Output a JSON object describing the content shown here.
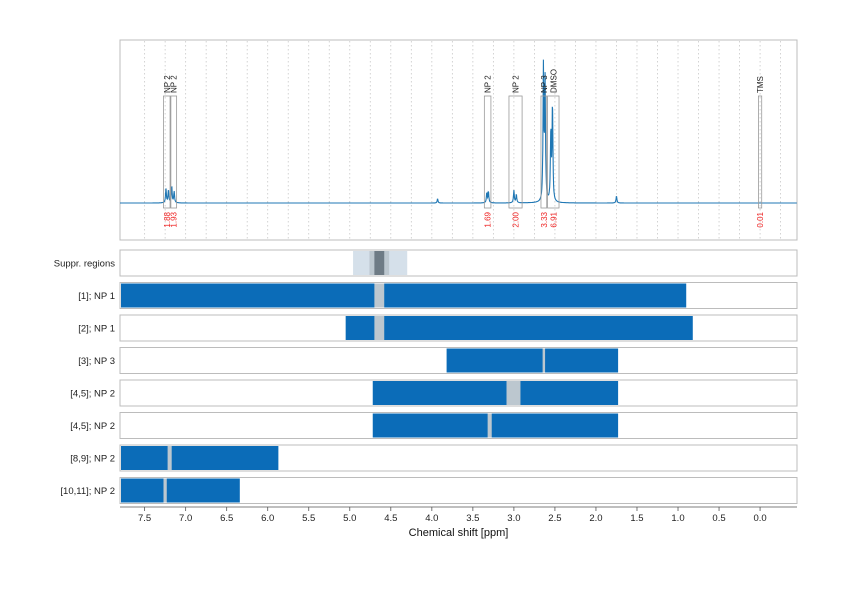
{
  "chart_data": {
    "type": "line",
    "xlabel": "Chemical shift [ppm]",
    "xlim": [
      7.8,
      -0.45
    ],
    "x_reversed": true,
    "x_ticks": [
      7.5,
      7.0,
      6.5,
      6.0,
      5.5,
      5.0,
      4.5,
      4.0,
      3.5,
      3.0,
      2.5,
      2.0,
      1.5,
      1.0,
      0.5,
      0.0
    ],
    "x_tick_labels": [
      "7.5",
      "7.0",
      "6.5",
      "6.0",
      "5.5",
      "5.0",
      "4.5",
      "4.0",
      "3.5",
      "3.0",
      "2.5",
      "2.0",
      "1.5",
      "1.0",
      "0.5",
      "0.0"
    ],
    "grid": "vertical dotted",
    "colors": {
      "spectrum": "#1f77b4",
      "bar": "#0b6cb8",
      "suppression_light": "#d5e0ea",
      "suppression_mid": "#bcc7cf",
      "suppression_dark": "#6e7b85",
      "integral_text": "#ee2222"
    },
    "spectrum": {
      "baseline": 0,
      "peaks": [
        {
          "x": 7.24,
          "height": 0.1
        },
        {
          "x": 7.21,
          "height": 0.09
        },
        {
          "x": 7.17,
          "height": 0.12
        },
        {
          "x": 7.14,
          "height": 0.08
        },
        {
          "x": 3.93,
          "height": 0.03
        },
        {
          "x": 3.33,
          "height": 0.07
        },
        {
          "x": 3.31,
          "height": 0.08
        },
        {
          "x": 3.0,
          "height": 0.09
        },
        {
          "x": 2.97,
          "height": 0.06
        },
        {
          "x": 2.64,
          "height": 0.95
        },
        {
          "x": 2.62,
          "height": 0.85
        },
        {
          "x": 2.55,
          "height": 0.5
        },
        {
          "x": 2.53,
          "height": 0.7
        },
        {
          "x": 1.75,
          "height": 0.05
        },
        {
          "x": 0.0,
          "height": 0.0
        }
      ]
    },
    "peak_regions": [
      {
        "label": "NP 2",
        "integral": "1.88",
        "from": 7.27,
        "to": 7.19
      },
      {
        "label": "NP 2",
        "integral": "1.93",
        "from": 7.18,
        "to": 7.11
      },
      {
        "label": "NP 2",
        "integral": "1.69",
        "from": 3.36,
        "to": 3.28
      },
      {
        "label": "NP 2",
        "integral": "2.00",
        "from": 3.06,
        "to": 2.9
      },
      {
        "label": "NP 3",
        "integral": "3.33",
        "from": 2.67,
        "to": 2.6
      },
      {
        "label": "DMSO",
        "integral": "6.91",
        "from": 2.59,
        "to": 2.45
      },
      {
        "label": "TMS",
        "integral": "0.01",
        "from": 0.02,
        "to": -0.02
      }
    ],
    "tracks": [
      {
        "label": "Suppr. regions",
        "kind": "suppression",
        "bands": [
          {
            "from": 4.96,
            "to": 4.3,
            "shade": "light"
          },
          {
            "from": 4.76,
            "to": 4.52,
            "shade": "mid"
          },
          {
            "from": 4.7,
            "to": 4.58,
            "shade": "dark"
          }
        ]
      },
      {
        "label": "[1]; NP 1",
        "range": [
          7.8,
          0.9
        ],
        "gaps": [
          [
            4.7,
            4.58
          ]
        ]
      },
      {
        "label": "[2]; NP 1",
        "range": [
          5.05,
          0.82
        ],
        "gaps": [
          [
            4.7,
            4.58
          ]
        ]
      },
      {
        "label": "[3]; NP 3",
        "range": [
          3.82,
          1.73
        ],
        "gaps": [
          [
            2.65,
            2.62
          ]
        ]
      },
      {
        "label": "[4,5]; NP 2",
        "range": [
          4.72,
          1.73
        ],
        "gaps": [
          [
            3.09,
            2.92
          ]
        ]
      },
      {
        "label": "[4,5]; NP 2",
        "range": [
          4.72,
          1.73
        ],
        "gaps": [
          [
            3.32,
            3.27
          ]
        ]
      },
      {
        "label": "[8,9]; NP 2",
        "range": [
          7.8,
          5.87
        ],
        "gaps": [
          [
            7.22,
            7.17
          ]
        ]
      },
      {
        "label": "[10,11]; NP 2",
        "range": [
          7.8,
          6.34
        ],
        "gaps": [
          [
            7.27,
            7.23
          ]
        ]
      }
    ]
  }
}
